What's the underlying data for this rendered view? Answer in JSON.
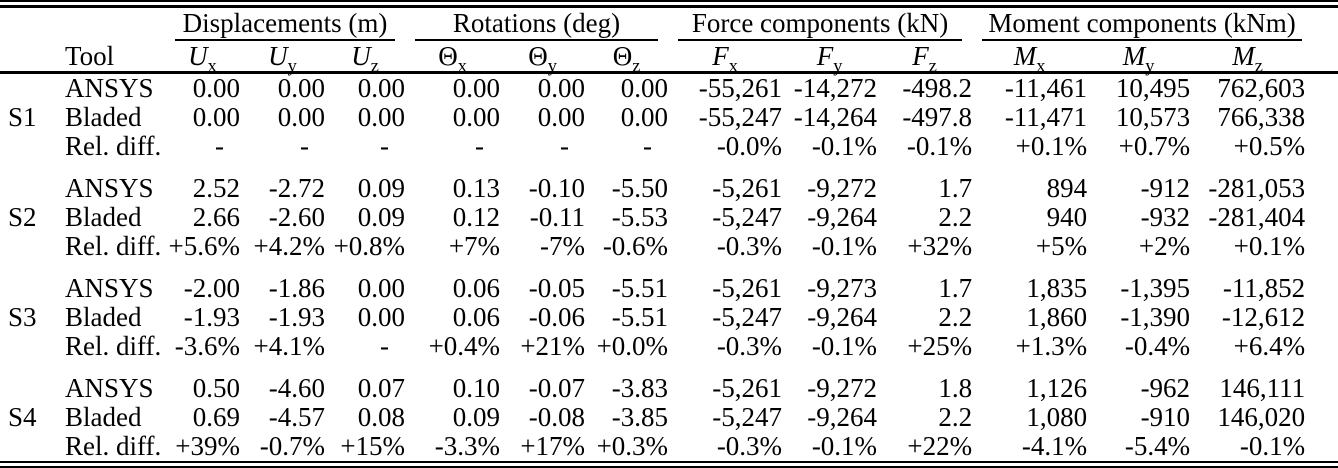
{
  "table": {
    "group_headers": [
      {
        "label": "Displacements (m)"
      },
      {
        "label": "Rotations (deg)"
      },
      {
        "label": "Force components (kN)"
      },
      {
        "label": "Moment components (kNm)"
      }
    ],
    "tool_header": "Tool",
    "column_headers": [
      {
        "base": "U",
        "sub": "x",
        "italic": true
      },
      {
        "base": "U",
        "sub": "y",
        "italic": true
      },
      {
        "base": "U",
        "sub": "z",
        "italic": true
      },
      {
        "base": "Θ",
        "sub": "x",
        "italic": false
      },
      {
        "base": "Θ",
        "sub": "y",
        "italic": false
      },
      {
        "base": "Θ",
        "sub": "z",
        "italic": false
      },
      {
        "base": "F",
        "sub": "x",
        "italic": true
      },
      {
        "base": "F",
        "sub": "y",
        "italic": true
      },
      {
        "base": "F",
        "sub": "z",
        "italic": true
      },
      {
        "base": "M",
        "sub": "x",
        "italic": true
      },
      {
        "base": "M",
        "sub": "y",
        "italic": true
      },
      {
        "base": "M",
        "sub": "z",
        "italic": true
      }
    ],
    "sections": [
      {
        "id": "S1",
        "rows": [
          {
            "tool": "ANSYS",
            "values": [
              "0.00",
              "0.00",
              "0.00",
              "0.00",
              "0.00",
              "0.00",
              "-55,261",
              "-14,272",
              "-498.2",
              "-11,461",
              "10,495",
              "762,603"
            ]
          },
          {
            "tool": "Bladed",
            "values": [
              "0.00",
              "0.00",
              "0.00",
              "0.00",
              "0.00",
              "0.00",
              "-55,247",
              "-14,264",
              "-497.8",
              "-11,471",
              "10,573",
              "766,338"
            ]
          },
          {
            "tool": "Rel. diff.",
            "values": [
              "-",
              "-",
              "-",
              "-",
              "-",
              "-",
              "-0.0%",
              "-0.1%",
              "-0.1%",
              "+0.1%",
              "+0.7%",
              "+0.5%"
            ]
          }
        ]
      },
      {
        "id": "S2",
        "rows": [
          {
            "tool": "ANSYS",
            "values": [
              "2.52",
              "-2.72",
              "0.09",
              "0.13",
              "-0.10",
              "-5.50",
              "-5,261",
              "-9,272",
              "1.7",
              "894",
              "-912",
              "-281,053"
            ]
          },
          {
            "tool": "Bladed",
            "values": [
              "2.66",
              "-2.60",
              "0.09",
              "0.12",
              "-0.11",
              "-5.53",
              "-5,247",
              "-9,264",
              "2.2",
              "940",
              "-932",
              "-281,404"
            ]
          },
          {
            "tool": "Rel. diff.",
            "values": [
              "+5.6%",
              "+4.2%",
              "+0.8%",
              "+7%",
              "-7%",
              "-0.6%",
              "-0.3%",
              "-0.1%",
              "+32%",
              "+5%",
              "+2%",
              "+0.1%"
            ]
          }
        ]
      },
      {
        "id": "S3",
        "rows": [
          {
            "tool": "ANSYS",
            "values": [
              "-2.00",
              "-1.86",
              "0.00",
              "0.06",
              "-0.05",
              "-5.51",
              "-5,261",
              "-9,273",
              "1.7",
              "1,835",
              "-1,395",
              "-11,852"
            ]
          },
          {
            "tool": "Bladed",
            "values": [
              "-1.93",
              "-1.93",
              "0.00",
              "0.06",
              "-0.06",
              "-5.51",
              "-5,247",
              "-9,264",
              "2.2",
              "1,860",
              "-1,390",
              "-12,612"
            ]
          },
          {
            "tool": "Rel. diff.",
            "values": [
              "-3.6%",
              "+4.1%",
              "-",
              "+0.4%",
              "+21%",
              "+0.0%",
              "-0.3%",
              "-0.1%",
              "+25%",
              "+1.3%",
              "-0.4%",
              "+6.4%"
            ]
          }
        ]
      },
      {
        "id": "S4",
        "rows": [
          {
            "tool": "ANSYS",
            "values": [
              "0.50",
              "-4.60",
              "0.07",
              "0.10",
              "-0.07",
              "-3.83",
              "-5,261",
              "-9,272",
              "1.8",
              "1,126",
              "-962",
              "146,111"
            ]
          },
          {
            "tool": "Bladed",
            "values": [
              "0.69",
              "-4.57",
              "0.08",
              "0.09",
              "-0.08",
              "-3.85",
              "-5,247",
              "-9,264",
              "2.2",
              "1,080",
              "-910",
              "146,020"
            ]
          },
          {
            "tool": "Rel. diff.",
            "values": [
              "+39%",
              "-0.7%",
              "+15%",
              "-3.3%",
              "+17%",
              "+0.3%",
              "-0.3%",
              "-0.1%",
              "+22%",
              "-4.1%",
              "-5.4%",
              "-0.1%"
            ]
          }
        ]
      }
    ]
  }
}
